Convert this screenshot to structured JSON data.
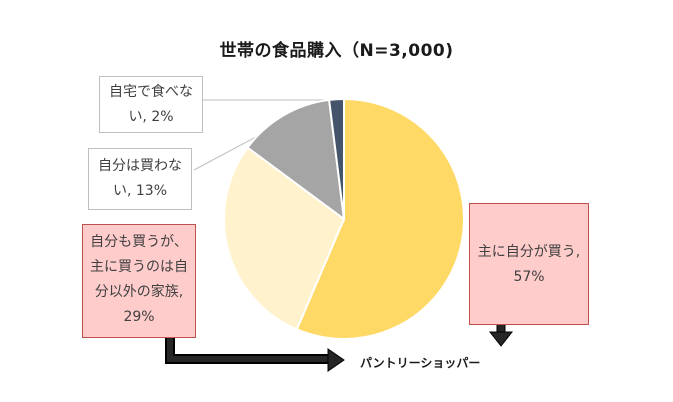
{
  "chart_data": {
    "type": "pie",
    "title": "世帯の食品購入（N=3,000)",
    "slices": [
      {
        "label": "主に自分が買う",
        "value": 57,
        "pct_label": "57%",
        "color": "#ffd966"
      },
      {
        "label": "自分も買うが、主に買うのは自分以外の家族",
        "value": 29,
        "pct_label": "29%",
        "color": "#fff2cc"
      },
      {
        "label": "自分は買わない",
        "value": 13,
        "pct_label": "13%",
        "color": "#a5a5a5"
      },
      {
        "label": "自宅で食べない",
        "value": 2,
        "pct_label": "2%",
        "color": "#44546a"
      }
    ]
  },
  "callouts": {
    "main_self": [
      "主に自分が買う,",
      "57%"
    ],
    "family": [
      "自分も買うが、",
      "主に買うのは自",
      "分以外の家族,",
      "29%"
    ],
    "not_buy": [
      "自分は買わな",
      "い, 13%"
    ],
    "no_eat": [
      "自宅で食べな",
      "い, 2%"
    ]
  },
  "annotation": "パントリーショッパー",
  "colors": {
    "callout_pink_bg": "#ffcccc",
    "callout_pink_border": "#c0504d",
    "arrow": "#1a1a1a"
  }
}
